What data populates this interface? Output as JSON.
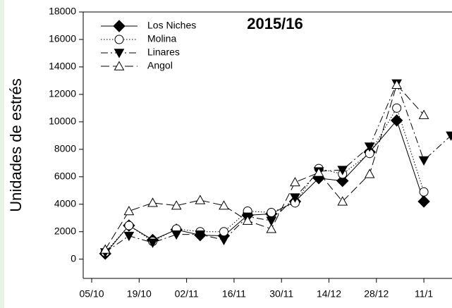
{
  "chart_data": {
    "type": "line",
    "title": "2015/16",
    "y_label": "Unidades de estrés",
    "x": [
      4,
      11,
      18,
      25,
      32,
      39,
      46,
      53,
      60,
      67,
      74,
      82,
      90,
      98,
      106
    ],
    "xlim": [
      -2.5,
      106.3
    ],
    "xticks": [
      {
        "value": 0,
        "label": "05/10"
      },
      {
        "value": 14,
        "label": "19/10"
      },
      {
        "value": 28,
        "label": "02/11"
      },
      {
        "value": 42,
        "label": "16/11"
      },
      {
        "value": 56,
        "label": "30/11"
      },
      {
        "value": 70,
        "label": "14/12"
      },
      {
        "value": 84,
        "label": "28/12"
      },
      {
        "value": 98,
        "label": "11/1"
      }
    ],
    "ylim": [
      -1400,
      18000
    ],
    "yticks": [
      0,
      2000,
      4000,
      6000,
      8000,
      10000,
      12000,
      14000,
      16000,
      18000
    ],
    "legend": "upper left",
    "series": [
      {
        "name": "Los Niches",
        "color": "#000000",
        "marker": "diamond",
        "dash": "solid",
        "values": [
          400,
          2450,
          1400,
          2150,
          1750,
          1700,
          3200,
          3300,
          4200,
          5900,
          5700,
          7800,
          10100,
          4200,
          null
        ]
      },
      {
        "name": "Molina",
        "color": "#000000",
        "marker": "circle",
        "dash": "dotted",
        "values": [
          500,
          2450,
          1300,
          2200,
          2000,
          2000,
          3500,
          3400,
          4100,
          6600,
          6200,
          7700,
          11000,
          4900,
          null
        ]
      },
      {
        "name": "Linares",
        "color": "#000000",
        "marker": "triangle-down",
        "dash": "dashdot",
        "values": [
          500,
          1700,
          1200,
          1800,
          1800,
          1400,
          3100,
          2800,
          4500,
          6400,
          6500,
          8200,
          12800,
          7200,
          9000
        ]
      },
      {
        "name": "Angol",
        "color": "#000000",
        "marker": "triangle-up",
        "dash": "dashed",
        "values": [
          700,
          3500,
          4100,
          3900,
          4300,
          3900,
          2800,
          2200,
          5600,
          6300,
          4200,
          6200,
          12700,
          10500,
          null
        ]
      }
    ]
  }
}
